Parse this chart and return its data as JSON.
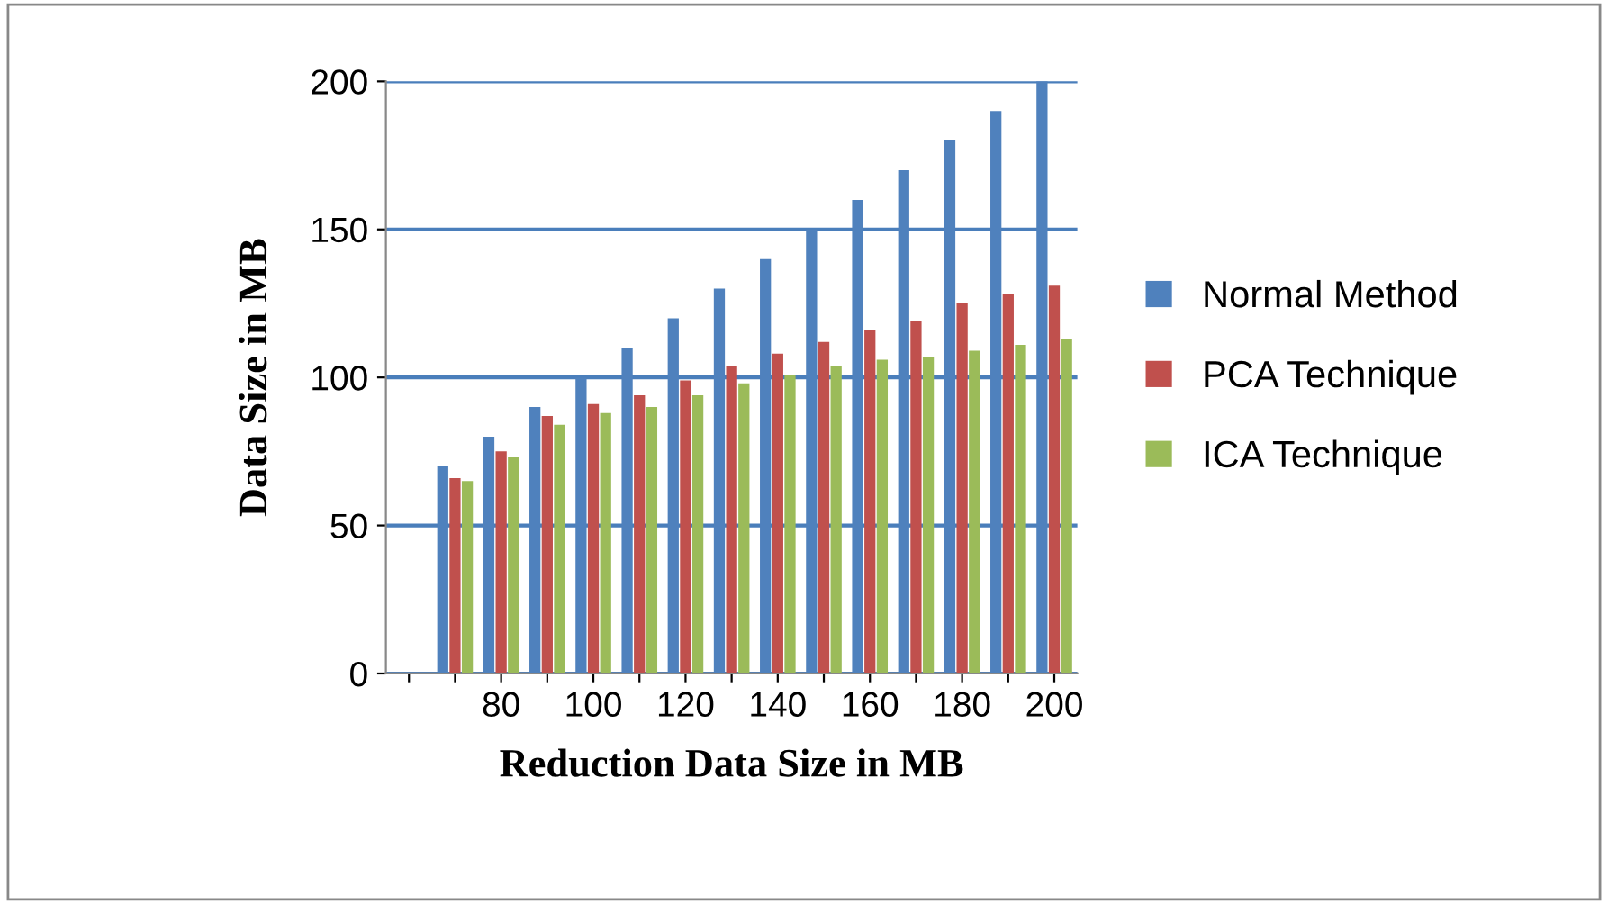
{
  "chart_data": {
    "type": "bar",
    "xlabel": "Reduction Data Size in MB",
    "ylabel": "Data Size in MB",
    "categories": [
      null,
      null,
      "80",
      null,
      "100",
      null,
      "120",
      null,
      "140",
      null,
      "160",
      null,
      "180",
      null,
      "200"
    ],
    "series": [
      {
        "name": "Normal Method",
        "color": "#4f81bd",
        "values": [
          null,
          70,
          80,
          90,
          100,
          110,
          120,
          130,
          140,
          150,
          160,
          170,
          180,
          190,
          200
        ]
      },
      {
        "name": "PCA Technique",
        "color": "#c0504d",
        "values": [
          null,
          66,
          75,
          87,
          91,
          94,
          99,
          104,
          108,
          112,
          116,
          119,
          125,
          128,
          131
        ]
      },
      {
        "name": "ICA Technique",
        "color": "#9bbb59",
        "values": [
          null,
          65,
          73,
          84,
          88,
          90,
          94,
          98,
          101,
          104,
          106,
          107,
          109,
          111,
          113
        ]
      }
    ],
    "ylim": [
      0,
      200
    ],
    "yticks": [
      0,
      50,
      100,
      150,
      200
    ],
    "grid": "y",
    "legend": "right"
  }
}
